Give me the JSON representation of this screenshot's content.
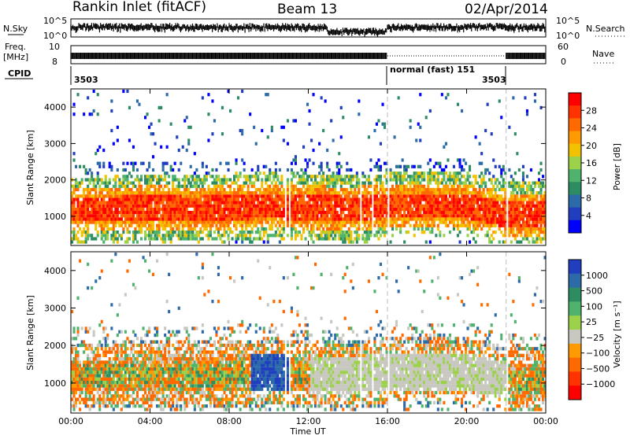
{
  "header": {
    "station": "Rankin Inlet (fitACF)",
    "beam": "Beam 13",
    "date": "02/Apr/2014"
  },
  "summary": {
    "nsky_label": "N.Sky",
    "nsearch_label": "N.Search",
    "freq_label_1": "Freq.",
    "freq_label_2": "[MHz]",
    "nave_label": "Nave",
    "cpid_label": "CPID",
    "nsky_ticks": [
      "10^5",
      "10^0"
    ],
    "nsearch_ticks": [
      "10^5",
      "10^0"
    ],
    "freq_ticks": [
      "10",
      "8"
    ],
    "nave_ticks": [
      "60",
      "0"
    ],
    "cpid_segments": [
      {
        "start_hour": 0,
        "end_hour": 16,
        "label": "3503"
      },
      {
        "start_hour": 16,
        "end_hour": 22,
        "label": "normal (fast) 151"
      },
      {
        "start_hour": 22,
        "end_hour": 24,
        "label": "3503"
      }
    ]
  },
  "chart_data": [
    {
      "type": "heatmap",
      "name": "power",
      "ylabel": "Slant Range [km]",
      "xlabel": "Time UT",
      "xlim_hours": [
        0,
        24
      ],
      "ylim_km": [
        200,
        4500
      ],
      "x_ticks": [
        "00:00",
        "04:00",
        "08:00",
        "12:00",
        "16:00",
        "20:00",
        "00:00"
      ],
      "y_ticks": [
        1000,
        2000,
        3000,
        4000
      ],
      "colorbar": {
        "label": "Power [dB]",
        "ticks": [
          "28",
          "24",
          "20",
          "16",
          "12",
          "8",
          "4"
        ],
        "colors": [
          "#ff0000",
          "#ff3300",
          "#ff6a00",
          "#ff9a00",
          "#f2c200",
          "#9bd24a",
          "#4fb36d",
          "#2e8c62",
          "#2d6aa8",
          "#1f3fbf",
          "#0000ff"
        ]
      },
      "data_gaps_hours": [
        10.8,
        11.0,
        14.6,
        15.2,
        16.0,
        22.0
      ],
      "main_band_km": [
        [
          0,
          1150
        ],
        [
          2,
          1150
        ],
        [
          4,
          1200
        ],
        [
          6,
          1150
        ],
        [
          8,
          1200
        ],
        [
          10,
          1250
        ],
        [
          12,
          1200
        ],
        [
          14,
          1150
        ],
        [
          16,
          1250
        ],
        [
          18,
          1250
        ],
        [
          20,
          1250
        ],
        [
          22,
          1000
        ],
        [
          24,
          1000
        ]
      ]
    },
    {
      "type": "heatmap",
      "name": "velocity",
      "ylabel": "Slant Range [km]",
      "xlabel": "Time UT",
      "xlim_hours": [
        0,
        24
      ],
      "ylim_km": [
        200,
        4500
      ],
      "x_ticks": [
        "00:00",
        "04:00",
        "08:00",
        "12:00",
        "16:00",
        "20:00",
        "00:00"
      ],
      "y_ticks": [
        1000,
        2000,
        3000,
        4000
      ],
      "colorbar": {
        "label": "Velocity [m s⁻¹]",
        "ticks": [
          "1000",
          "500",
          "100",
          "25",
          "−25",
          "−100",
          "−500",
          "−1000"
        ],
        "colors": [
          "#1f3fbf",
          "#2d6aa8",
          "#2e8c62",
          "#4fb36d",
          "#9bd24a",
          "#c8c8c0",
          "#ff9a00",
          "#ff6a00",
          "#ff3300",
          "#ff0000"
        ]
      }
    }
  ]
}
